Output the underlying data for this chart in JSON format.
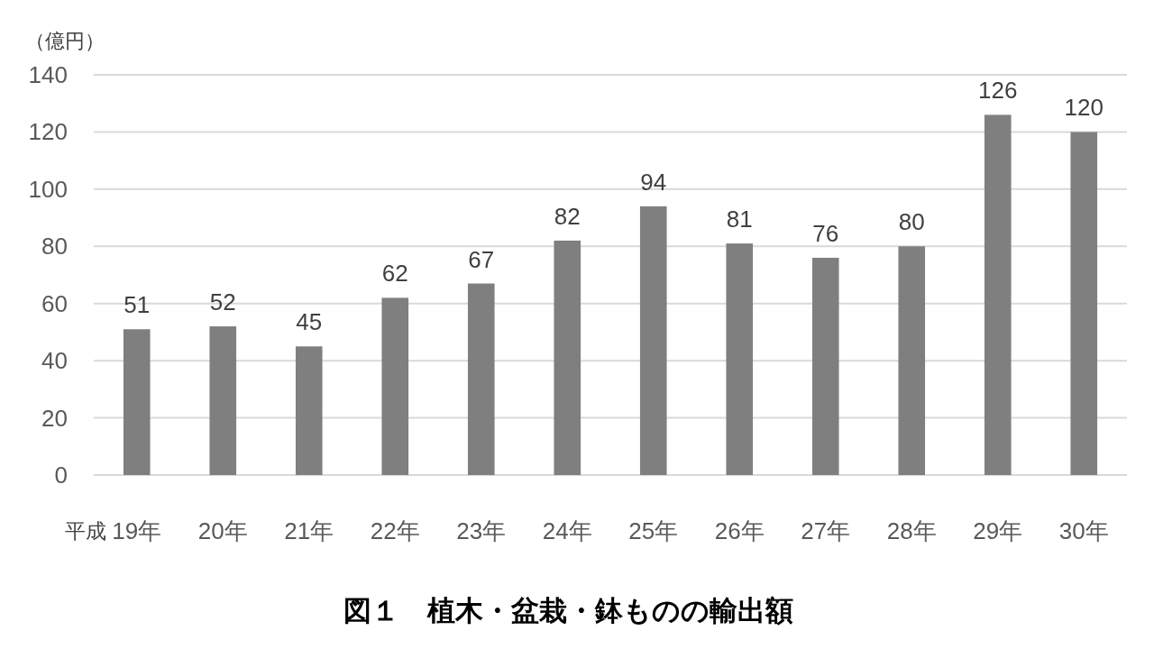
{
  "chart_data": {
    "type": "bar",
    "title": "図１　植木・盆栽・鉢ものの輸出額",
    "ylabel": "（億円）",
    "xlabel": "平成",
    "categories": [
      "19年",
      "20年",
      "21年",
      "22年",
      "23年",
      "24年",
      "25年",
      "26年",
      "27年",
      "28年",
      "29年",
      "30年"
    ],
    "values": [
      51,
      52,
      45,
      62,
      67,
      82,
      94,
      81,
      76,
      80,
      126,
      120
    ],
    "color": "#7f7f7f",
    "ylim": [
      0,
      140
    ],
    "yticks": [
      0,
      20,
      40,
      60,
      80,
      100,
      120,
      140
    ],
    "grid": "y",
    "data_labels": true
  }
}
